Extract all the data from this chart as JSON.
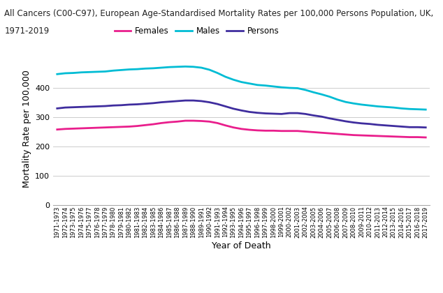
{
  "title_line1": "All Cancers (C00-C97), European Age-Standardised Mortality Rates per 100,000 Persons Population, UK,",
  "title_line2": "1971-2019",
  "xlabel": "Year of Death",
  "ylabel": "Mortality Rate per 100,000",
  "background_color": "#ffffff",
  "grid_color": "#cccccc",
  "ylim": [
    0,
    520
  ],
  "yticks": [
    0,
    100,
    200,
    300,
    400
  ],
  "years": [
    "1971-1973",
    "1972-1974",
    "1973-1975",
    "1974-1976",
    "1975-1977",
    "1976-1978",
    "1977-1979",
    "1978-1980",
    "1979-1981",
    "1980-1982",
    "1981-1983",
    "1982-1984",
    "1983-1985",
    "1984-1986",
    "1985-1987",
    "1986-1988",
    "1987-1989",
    "1988-1990",
    "1989-1991",
    "1990-1992",
    "1991-1993",
    "1992-1994",
    "1993-1995",
    "1994-1996",
    "1995-1997",
    "1996-1998",
    "1997-1999",
    "1998-2000",
    "1999-2001",
    "2000-2002",
    "2001-2003",
    "2002-2004",
    "2003-2005",
    "2004-2006",
    "2005-2007",
    "2006-2008",
    "2007-2009",
    "2008-2010",
    "2009-2011",
    "2010-2012",
    "2011-2013",
    "2012-2014",
    "2013-2015",
    "2014-2016",
    "2015-2017",
    "2016-2018",
    "2017-2019"
  ],
  "females": [
    258,
    260,
    261,
    262,
    263,
    264,
    265,
    266,
    267,
    268,
    270,
    273,
    276,
    280,
    283,
    285,
    288,
    288,
    287,
    285,
    280,
    272,
    265,
    260,
    257,
    255,
    254,
    254,
    253,
    253,
    253,
    251,
    249,
    247,
    245,
    243,
    241,
    239,
    238,
    237,
    236,
    235,
    234,
    233,
    232,
    232,
    231
  ],
  "males": [
    447,
    450,
    451,
    453,
    454,
    455,
    456,
    459,
    461,
    463,
    464,
    466,
    467,
    469,
    471,
    472,
    473,
    472,
    469,
    462,
    451,
    438,
    428,
    420,
    415,
    410,
    408,
    405,
    402,
    400,
    399,
    393,
    385,
    378,
    370,
    360,
    352,
    347,
    343,
    340,
    337,
    335,
    333,
    330,
    328,
    327,
    326
  ],
  "persons": [
    330,
    333,
    334,
    335,
    336,
    337,
    338,
    340,
    341,
    343,
    344,
    346,
    348,
    351,
    353,
    355,
    357,
    357,
    355,
    351,
    345,
    337,
    329,
    323,
    318,
    315,
    313,
    312,
    311,
    314,
    314,
    311,
    306,
    302,
    296,
    291,
    286,
    282,
    279,
    277,
    274,
    272,
    270,
    268,
    266,
    266,
    265
  ],
  "female_color": "#e91e8c",
  "male_color": "#00bcd4",
  "persons_color": "#3f2d9e",
  "line_width": 2.0,
  "title_fontsize": 8.5,
  "legend_fontsize": 8.5,
  "axis_label_fontsize": 9,
  "tick_fontsize": 6
}
